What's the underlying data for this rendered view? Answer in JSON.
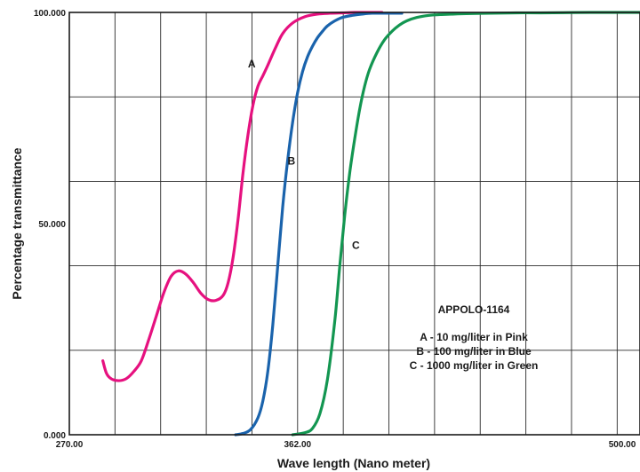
{
  "chart_data": {
    "type": "line",
    "xlabel": "Wave length (Nano meter)",
    "ylabel": "Percentage transmittance",
    "xlim": [
      270,
      500
    ],
    "ylim": [
      0,
      100
    ],
    "x_ticks": [
      {
        "value": 270,
        "label": "270.00"
      },
      {
        "value": 362,
        "label": "362.00"
      },
      {
        "value": 500,
        "label": "500.00"
      }
    ],
    "y_ticks": [
      {
        "value": 0,
        "label": "0.000"
      },
      {
        "value": 50,
        "label": "50.000"
      },
      {
        "value": 100,
        "label": "100.000"
      }
    ],
    "x_grid": [
      270,
      288.4,
      306.8,
      325.2,
      343.6,
      362,
      380.4,
      398.8,
      417.2,
      435.6,
      454,
      472.4,
      490.8
    ],
    "grid": true,
    "annotation": {
      "title": "APPOLO-1164",
      "lines": [
        "A - 10 mg/liter in Pink",
        "B - 100 mg/liter in Blue",
        "C - 1000 mg/liter in Green"
      ]
    },
    "series": [
      {
        "name": "A",
        "color": "#e6117f",
        "label_at": [
          343.5,
          87
        ],
        "x": [
          283.5,
          285,
          287,
          290,
          293,
          296,
          299,
          302,
          305,
          308,
          311,
          314,
          317,
          320,
          323,
          326,
          329,
          332,
          334,
          336,
          338,
          340,
          342,
          344,
          346,
          348,
          350,
          353,
          356,
          360,
          365,
          370,
          375,
          380,
          385,
          390,
          396
        ],
        "y": [
          17.5,
          14.5,
          13.2,
          12.8,
          13.3,
          15,
          17.5,
          22.5,
          28,
          33.5,
          37.5,
          38.8,
          38,
          36,
          33.5,
          32,
          31.8,
          33,
          36,
          42,
          51,
          62,
          71,
          78,
          82.5,
          85,
          87.5,
          91.5,
          95,
          97.5,
          99,
          99.6,
          99.8,
          99.9,
          100,
          100,
          100
        ]
      },
      {
        "name": "B",
        "color": "#1a63ac",
        "label_at": [
          359.5,
          64
        ],
        "x": [
          337,
          340,
          343,
          346,
          348,
          350,
          352,
          354,
          356,
          358,
          360,
          362,
          364,
          366,
          368,
          370,
          372,
          374,
          377,
          380,
          384,
          388,
          392,
          396,
          400,
          404
        ],
        "y": [
          0,
          0.3,
          1.2,
          4,
          8,
          15,
          26,
          40,
          54,
          65,
          74,
          81,
          86,
          89.5,
          92,
          94,
          95.5,
          96.8,
          98,
          98.8,
          99.3,
          99.6,
          99.8,
          99.8,
          99.8,
          99.8
        ]
      },
      {
        "name": "C",
        "color": "#139651",
        "label_at": [
          385.5,
          44
        ],
        "x": [
          360,
          365,
          368,
          371,
          374,
          377,
          379,
          381,
          383,
          385,
          387,
          389,
          391,
          394,
          397,
          400,
          403,
          406,
          410,
          415,
          420,
          430,
          440,
          450,
          460,
          480,
          500
        ],
        "y": [
          0,
          0.5,
          1.5,
          5,
          13,
          27,
          40,
          52,
          62,
          70,
          77,
          82.5,
          86.5,
          90.5,
          93.5,
          95.5,
          97,
          98,
          98.8,
          99.3,
          99.5,
          99.7,
          99.8,
          99.9,
          99.9,
          100,
          100
        ]
      }
    ]
  }
}
